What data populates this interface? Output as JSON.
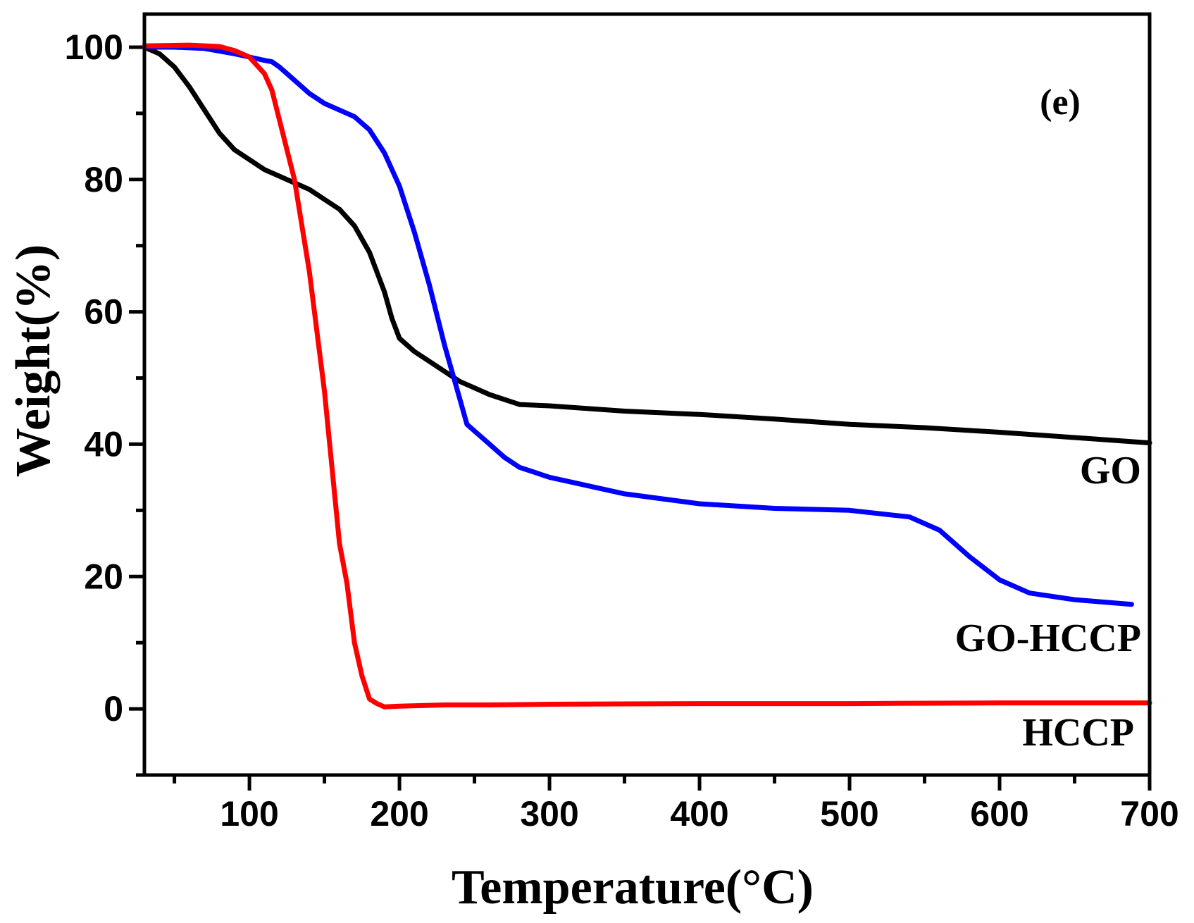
{
  "chart_data": {
    "type": "line",
    "title": "",
    "panel_label": "(e)",
    "xlabel": "Temperature(°C)",
    "ylabel": "Weight(%)",
    "xlim": [
      30,
      700
    ],
    "ylim": [
      -10,
      105
    ],
    "x_ticks": [
      100,
      200,
      300,
      400,
      500,
      600,
      700
    ],
    "y_ticks": [
      0,
      20,
      40,
      60,
      80,
      100
    ],
    "grid": false,
    "legend": "inline labels at right end of curves",
    "series": [
      {
        "name": "GO",
        "color": "#000000",
        "x": [
          30,
          40,
          50,
          60,
          70,
          80,
          90,
          100,
          110,
          120,
          130,
          140,
          150,
          160,
          170,
          180,
          190,
          195,
          200,
          210,
          220,
          230,
          240,
          250,
          260,
          280,
          300,
          350,
          400,
          450,
          500,
          550,
          600,
          650,
          700
        ],
        "y": [
          100,
          99,
          97,
          94,
          90.5,
          87,
          84.5,
          83,
          81.5,
          80.5,
          79.5,
          78.5,
          77,
          75.5,
          73,
          69,
          63,
          59,
          56,
          54,
          52.5,
          51,
          49.5,
          48.5,
          47.5,
          46,
          45.8,
          45,
          44.5,
          43.8,
          43,
          42.5,
          41.8,
          41,
          40.2
        ]
      },
      {
        "name": "GO-HCCP",
        "color": "#0000ff",
        "x": [
          30,
          50,
          70,
          90,
          100,
          110,
          115,
          120,
          130,
          140,
          150,
          160,
          170,
          180,
          190,
          200,
          210,
          220,
          230,
          240,
          245,
          250,
          255,
          260,
          270,
          280,
          300,
          320,
          350,
          400,
          450,
          500,
          540,
          560,
          580,
          600,
          620,
          650,
          688
        ],
        "y": [
          100,
          100,
          99.8,
          99,
          98.5,
          98,
          97.8,
          97,
          95,
          93,
          91.5,
          90.5,
          89.5,
          87.5,
          84,
          79,
          72,
          64,
          55,
          47,
          43,
          42,
          41,
          40,
          38,
          36.5,
          35,
          34,
          32.5,
          31,
          30.3,
          30,
          29,
          27,
          23,
          19.5,
          17.5,
          16.5,
          15.8
        ]
      },
      {
        "name": "HCCP",
        "color": "#ff0000",
        "x": [
          30,
          60,
          80,
          90,
          100,
          110,
          115,
          120,
          130,
          140,
          150,
          160,
          165,
          170,
          175,
          180,
          185,
          190,
          200,
          230,
          260,
          300,
          400,
          500,
          600,
          700
        ],
        "y": [
          100.2,
          100.3,
          100.1,
          99.5,
          98.5,
          96,
          93.5,
          89,
          80,
          66,
          48,
          25,
          19,
          10,
          5,
          1.5,
          0.8,
          0.3,
          0.4,
          0.6,
          0.6,
          0.7,
          0.8,
          0.8,
          0.9,
          0.9
        ]
      }
    ]
  }
}
